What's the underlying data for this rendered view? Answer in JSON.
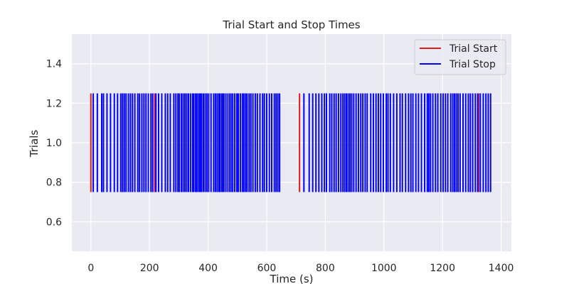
{
  "chart_data": {
    "type": "event-lines",
    "title": "Trial Start and Stop Times",
    "xlabel": "Time (s)",
    "ylabel": "Trials",
    "xlim": [
      -65,
      1435
    ],
    "ylim": [
      0.45,
      1.55
    ],
    "xticks": [
      0,
      200,
      400,
      600,
      800,
      1000,
      1200,
      1400
    ],
    "yticks": [
      0.6,
      0.8,
      1.0,
      1.2,
      1.4
    ],
    "line_y_range": [
      0.75,
      1.25
    ],
    "grid": true,
    "legend_position": "top-right",
    "series": [
      {
        "name": "Trial Start",
        "color": "#e41a1c",
        "values": [
          0,
          218,
          712,
          1323
        ]
      },
      {
        "name": "Trial Stop",
        "color": "#0000ff",
        "values": [
          8,
          22,
          37,
          43,
          55,
          67,
          80,
          91,
          102,
          108,
          114,
          120,
          128,
          135,
          142,
          150,
          160,
          166,
          174,
          181,
          188,
          196,
          205,
          211,
          222,
          231,
          242,
          254,
          262,
          271,
          283,
          290,
          297,
          302,
          309,
          315,
          321,
          327,
          333,
          340,
          347,
          351,
          357,
          362,
          368,
          373,
          378,
          384,
          390,
          396,
          402,
          410,
          419,
          425,
          431,
          437,
          441,
          447,
          452,
          458,
          465,
          472,
          478,
          484,
          491,
          498,
          503,
          510,
          517,
          522,
          528,
          533,
          540,
          546,
          553,
          561,
          568,
          577,
          586,
          592,
          600,
          609,
          617,
          626,
          632,
          638,
          644,
          727,
          745,
          757,
          768,
          778,
          788,
          797,
          804,
          815,
          822,
          830,
          837,
          845,
          853,
          860,
          866,
          872,
          878,
          884,
          890,
          897,
          905,
          913,
          921,
          928,
          936,
          943,
          955,
          964,
          973,
          981,
          989,
          998,
          1008,
          1014,
          1022,
          1033,
          1044,
          1055,
          1063,
          1074,
          1084,
          1092,
          1099,
          1109,
          1118,
          1128,
          1139,
          1148,
          1153,
          1159,
          1167,
          1176,
          1184,
          1194,
          1202,
          1210,
          1218,
          1228,
          1235,
          1241,
          1247,
          1253,
          1260,
          1270,
          1279,
          1288,
          1295,
          1303,
          1312,
          1320,
          1329,
          1339,
          1348,
          1356,
          1364
        ]
      }
    ]
  }
}
